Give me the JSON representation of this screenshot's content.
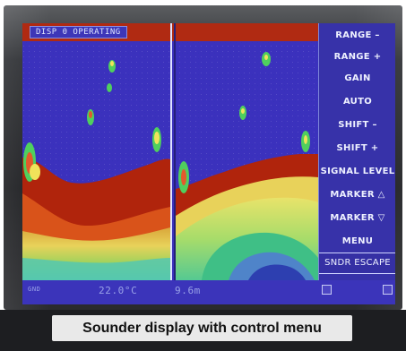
{
  "screen": {
    "status_label": "DISP 0 OPERATING",
    "readout_temp": "22.0°C",
    "readout_depth": "9.6m",
    "bottom_left_text": "GND"
  },
  "menu": {
    "items": [
      {
        "label": "RANGE  –"
      },
      {
        "label": "RANGE  +"
      },
      {
        "label": "GAIN"
      },
      {
        "label": "AUTO"
      },
      {
        "label": "SHIFT  –"
      },
      {
        "label": "SHIFT  +"
      },
      {
        "label": "SIGNAL LEVEL"
      },
      {
        "label": "MARKER △"
      },
      {
        "label": "MARKER ▽"
      },
      {
        "label": "MENU"
      },
      {
        "label": "SNDR ESCAPE"
      }
    ]
  },
  "caption": "Sounder display with control menu",
  "colors": {
    "water": "#3b31bd",
    "seabed_red": "#b0240c",
    "echo_yellow": "#f0e35a",
    "echo_green": "#4fcf5e",
    "menu_bg": "#3732a9"
  }
}
